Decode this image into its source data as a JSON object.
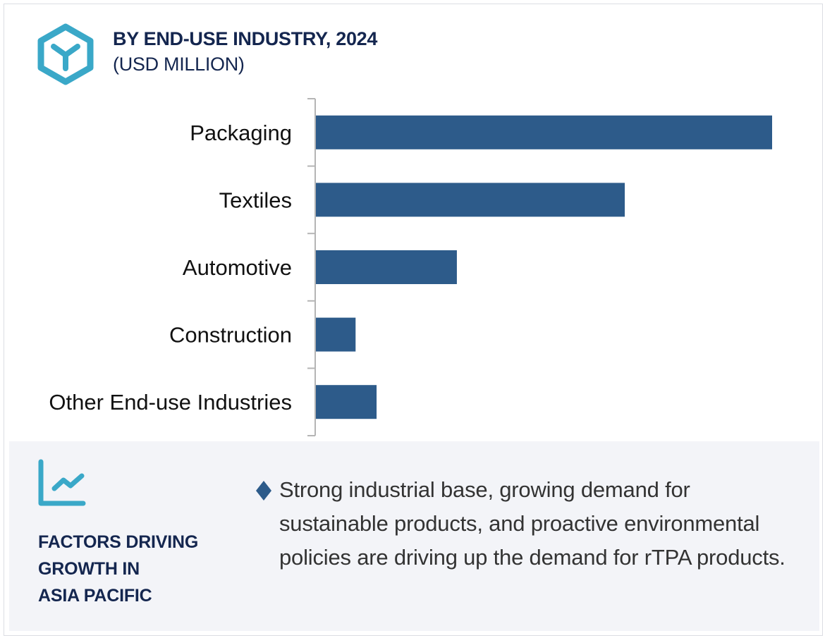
{
  "header": {
    "icon": "hexagon-y-icon",
    "title": "BY END-USE INDUSTRY, 2024",
    "subtitle": "(USD MILLION)"
  },
  "colors": {
    "bar": "#2d5b8a",
    "title": "#14264f",
    "icon_accent": "#3aa8c8",
    "panel_bg": "#f3f4f8",
    "axis": "#b5b5b5"
  },
  "chart_data": {
    "type": "bar",
    "orientation": "horizontal",
    "title": "BY END-USE INDUSTRY, 2024",
    "subtitle": "(USD MILLION)",
    "xlabel": "",
    "ylabel": "",
    "categories": [
      "Packaging",
      "Textiles",
      "Automotive",
      "Construction",
      "Other End-use Industries"
    ],
    "values": [
      100,
      67.7,
      30.9,
      8.7,
      13.3
    ],
    "value_note": "No value axis or data labels shown; values are relative bar lengths (Packaging = 100)",
    "xlim": [
      0,
      100
    ],
    "grid": false,
    "legend": "none"
  },
  "factors": {
    "icon": "line-chart-growth-icon",
    "title_lines": [
      "FACTORS DRIVING",
      "GROWTH IN",
      "ASIA PACIFIC"
    ],
    "bullet_icon": "diamond-bullet-icon",
    "text": "Strong industrial base, growing demand for sustainable products, and proactive environmental policies are driving up the demand for rTPA products."
  }
}
